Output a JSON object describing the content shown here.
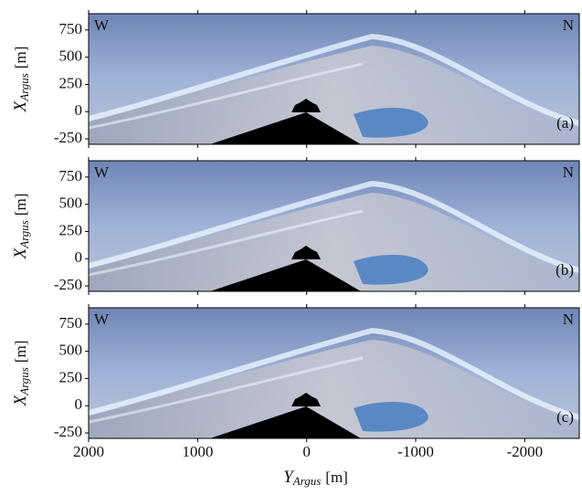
{
  "chart_data": [
    {
      "type": "image",
      "corner_left": "W",
      "corner_right": "N",
      "panel_label": "(a)",
      "ylabel_symbol": "X",
      "ylabel_subscript": "Argus",
      "ylabel_unit": "[m]",
      "xlim": [
        2000,
        -2500
      ],
      "ylim": [
        -300,
        900
      ],
      "xticks": [
        2000,
        1000,
        0,
        -1000,
        -2000
      ],
      "yticks": [
        -250,
        0,
        250,
        500,
        750
      ]
    },
    {
      "type": "image",
      "corner_left": "W",
      "corner_right": "N",
      "panel_label": "(b)",
      "ylabel_symbol": "X",
      "ylabel_subscript": "Argus",
      "ylabel_unit": "[m]",
      "xlim": [
        2000,
        -2500
      ],
      "ylim": [
        -300,
        900
      ],
      "xticks": [
        2000,
        1000,
        0,
        -1000,
        -2000
      ],
      "yticks": [
        -250,
        0,
        250,
        500,
        750
      ]
    },
    {
      "type": "image",
      "corner_left": "W",
      "corner_right": "N",
      "panel_label": "(c)",
      "ylabel_symbol": "X",
      "ylabel_subscript": "Argus",
      "ylabel_unit": "[m]",
      "xlabel_symbol": "Y",
      "xlabel_subscript": "Argus",
      "xlabel_unit": "[m]",
      "xlim": [
        2000,
        -2500
      ],
      "ylim": [
        -300,
        900
      ],
      "xticks": [
        2000,
        1000,
        0,
        -1000,
        -2000
      ],
      "yticks": [
        -250,
        0,
        250,
        500,
        750
      ]
    }
  ]
}
